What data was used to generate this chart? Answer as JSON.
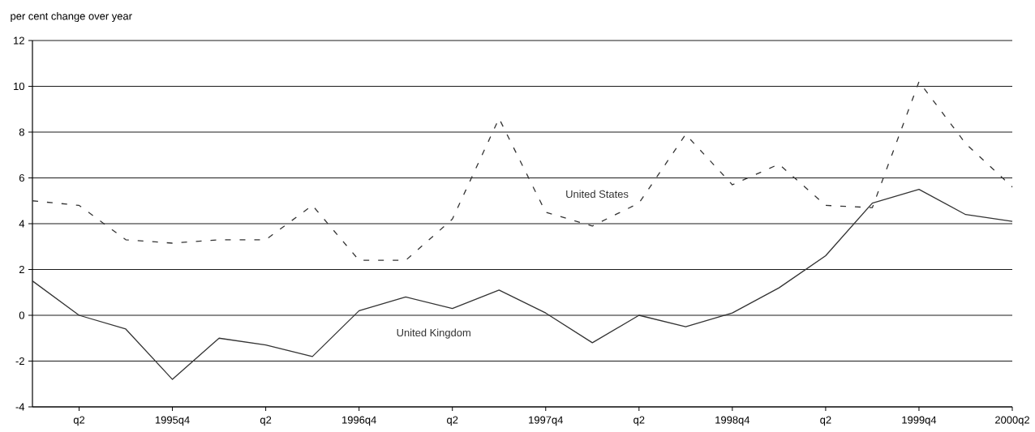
{
  "chart_data": {
    "type": "line",
    "ylabel": "per cent change over year",
    "categories": [
      null,
      "q2",
      null,
      "1995q4",
      null,
      "q2",
      null,
      "1996q4",
      null,
      "q2",
      null,
      "1997q4",
      null,
      "q2",
      null,
      "1998q4",
      null,
      "q2",
      null,
      "1999q4",
      null,
      "2000q2"
    ],
    "series": [
      {
        "name": "United States",
        "color": "#333333",
        "line_style": "dashed",
        "values": [
          5.0,
          4.8,
          3.3,
          3.15,
          3.3,
          3.3,
          4.8,
          2.4,
          2.4,
          4.2,
          8.6,
          4.5,
          3.9,
          4.9,
          7.9,
          5.7,
          6.6,
          4.8,
          4.7,
          10.2,
          7.5,
          5.6
        ]
      },
      {
        "name": "United Kingdom",
        "color": "#333333",
        "line_style": "solid",
        "values": [
          1.5,
          0.0,
          -0.6,
          -2.8,
          -1.0,
          -1.3,
          -1.8,
          0.2,
          0.8,
          0.3,
          1.1,
          0.1,
          -1.2,
          0.0,
          -0.5,
          0.1,
          1.2,
          2.6,
          4.9,
          5.5,
          4.4,
          4.1
        ]
      }
    ],
    "ylim": [
      -4,
      12
    ],
    "yticks": [
      -4,
      -2,
      0,
      2,
      4,
      6,
      8,
      10,
      12
    ],
    "grid": "y"
  }
}
